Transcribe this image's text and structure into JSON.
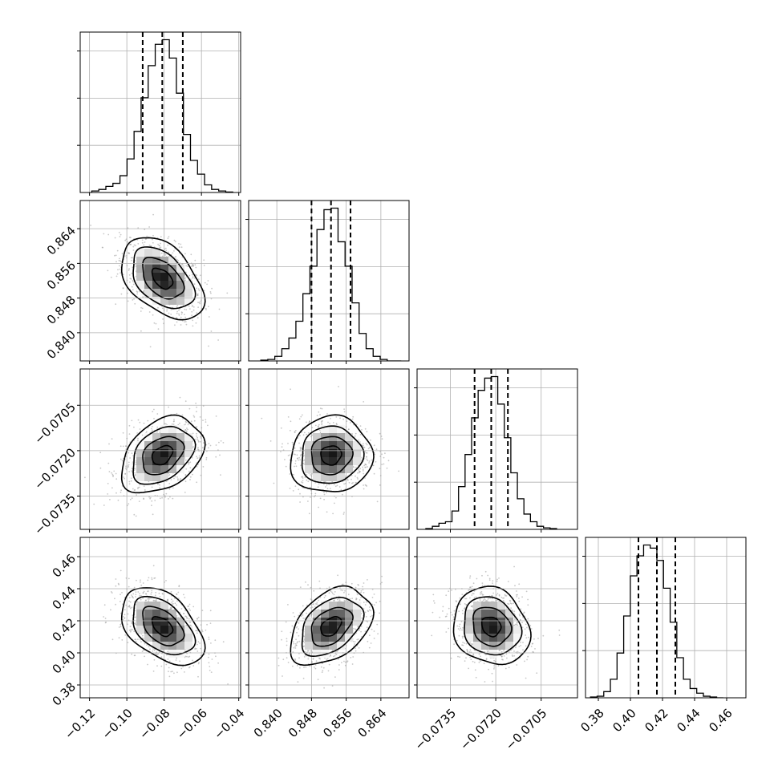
{
  "chart_data": {
    "type": "corner",
    "title": "",
    "grid": true,
    "parameters": [
      {
        "index": 0,
        "range": [
          -0.125,
          -0.039
        ],
        "ticks": [
          "-0.12",
          "-0.10",
          "-0.08",
          "-0.06",
          "-0.04"
        ],
        "tick_values": [
          -0.12,
          -0.1,
          -0.08,
          -0.06,
          -0.04
        ],
        "mean": -0.081,
        "sigma": 0.0105,
        "quantiles": [
          -0.0915,
          -0.081,
          -0.07
        ],
        "histogram_counts": [
          0.01,
          0.02,
          0.04,
          0.06,
          0.11,
          0.22,
          0.4,
          0.62,
          0.83,
          0.97,
          1.0,
          0.88,
          0.65,
          0.38,
          0.21,
          0.12,
          0.05,
          0.02,
          0.01,
          0.003
        ]
      },
      {
        "index": 1,
        "range": [
          0.8335,
          0.8705
        ],
        "ticks": [
          "0.840",
          "0.848",
          "0.856",
          "0.864"
        ],
        "tick_values": [
          0.84,
          0.848,
          0.856,
          0.864
        ],
        "mean": 0.8525,
        "sigma": 0.0045,
        "quantiles": [
          0.848,
          0.8525,
          0.857
        ],
        "histogram_counts": [
          0.005,
          0.01,
          0.03,
          0.08,
          0.15,
          0.26,
          0.44,
          0.62,
          0.86,
          0.99,
          1.0,
          0.78,
          0.62,
          0.38,
          0.18,
          0.08,
          0.03,
          0.01,
          0.0,
          0.0
        ]
      },
      {
        "index": 2,
        "range": [
          -0.0746,
          -0.0693
        ],
        "ticks": [
          "-0.0735",
          "-0.0720",
          "-0.0705"
        ],
        "tick_values": [
          -0.0735,
          -0.072,
          -0.0705
        ],
        "mean": -0.07215,
        "sigma": 0.0006,
        "quantiles": [
          -0.0727,
          -0.07215,
          -0.0716
        ],
        "histogram_counts": [
          0.005,
          0.02,
          0.04,
          0.05,
          0.12,
          0.28,
          0.49,
          0.73,
          0.91,
          0.99,
          1.0,
          0.82,
          0.6,
          0.37,
          0.2,
          0.1,
          0.05,
          0.02,
          0.01,
          0.005
        ]
      },
      {
        "index": 3,
        "range": [
          0.372,
          0.472
        ],
        "ticks": [
          "0.38",
          "0.40",
          "0.42",
          "0.44",
          "0.46"
        ],
        "tick_values": [
          0.38,
          0.4,
          0.42,
          0.44,
          0.46
        ],
        "mean": 0.4165,
        "sigma": 0.0115,
        "quantiles": [
          0.405,
          0.4165,
          0.428
        ],
        "histogram_counts": [
          0.005,
          0.01,
          0.04,
          0.12,
          0.29,
          0.53,
          0.79,
          0.92,
          0.99,
          0.97,
          0.89,
          0.71,
          0.49,
          0.26,
          0.12,
          0.06,
          0.03,
          0.01,
          0.005,
          0.0
        ]
      }
    ],
    "correlations": {
      "1,0": -0.45,
      "2,0": 0.35,
      "2,1": 0.05,
      "3,0": -0.45,
      "3,1": 0.4,
      "3,2": -0.15
    },
    "contour_levels_sigma": [
      0.5,
      1.0,
      1.5,
      2.0
    ],
    "colors": {
      "contour": "#000000",
      "density_dark": "#1a1a1a",
      "points": "#9a9a9a",
      "grid": "#b0b0b0"
    }
  }
}
